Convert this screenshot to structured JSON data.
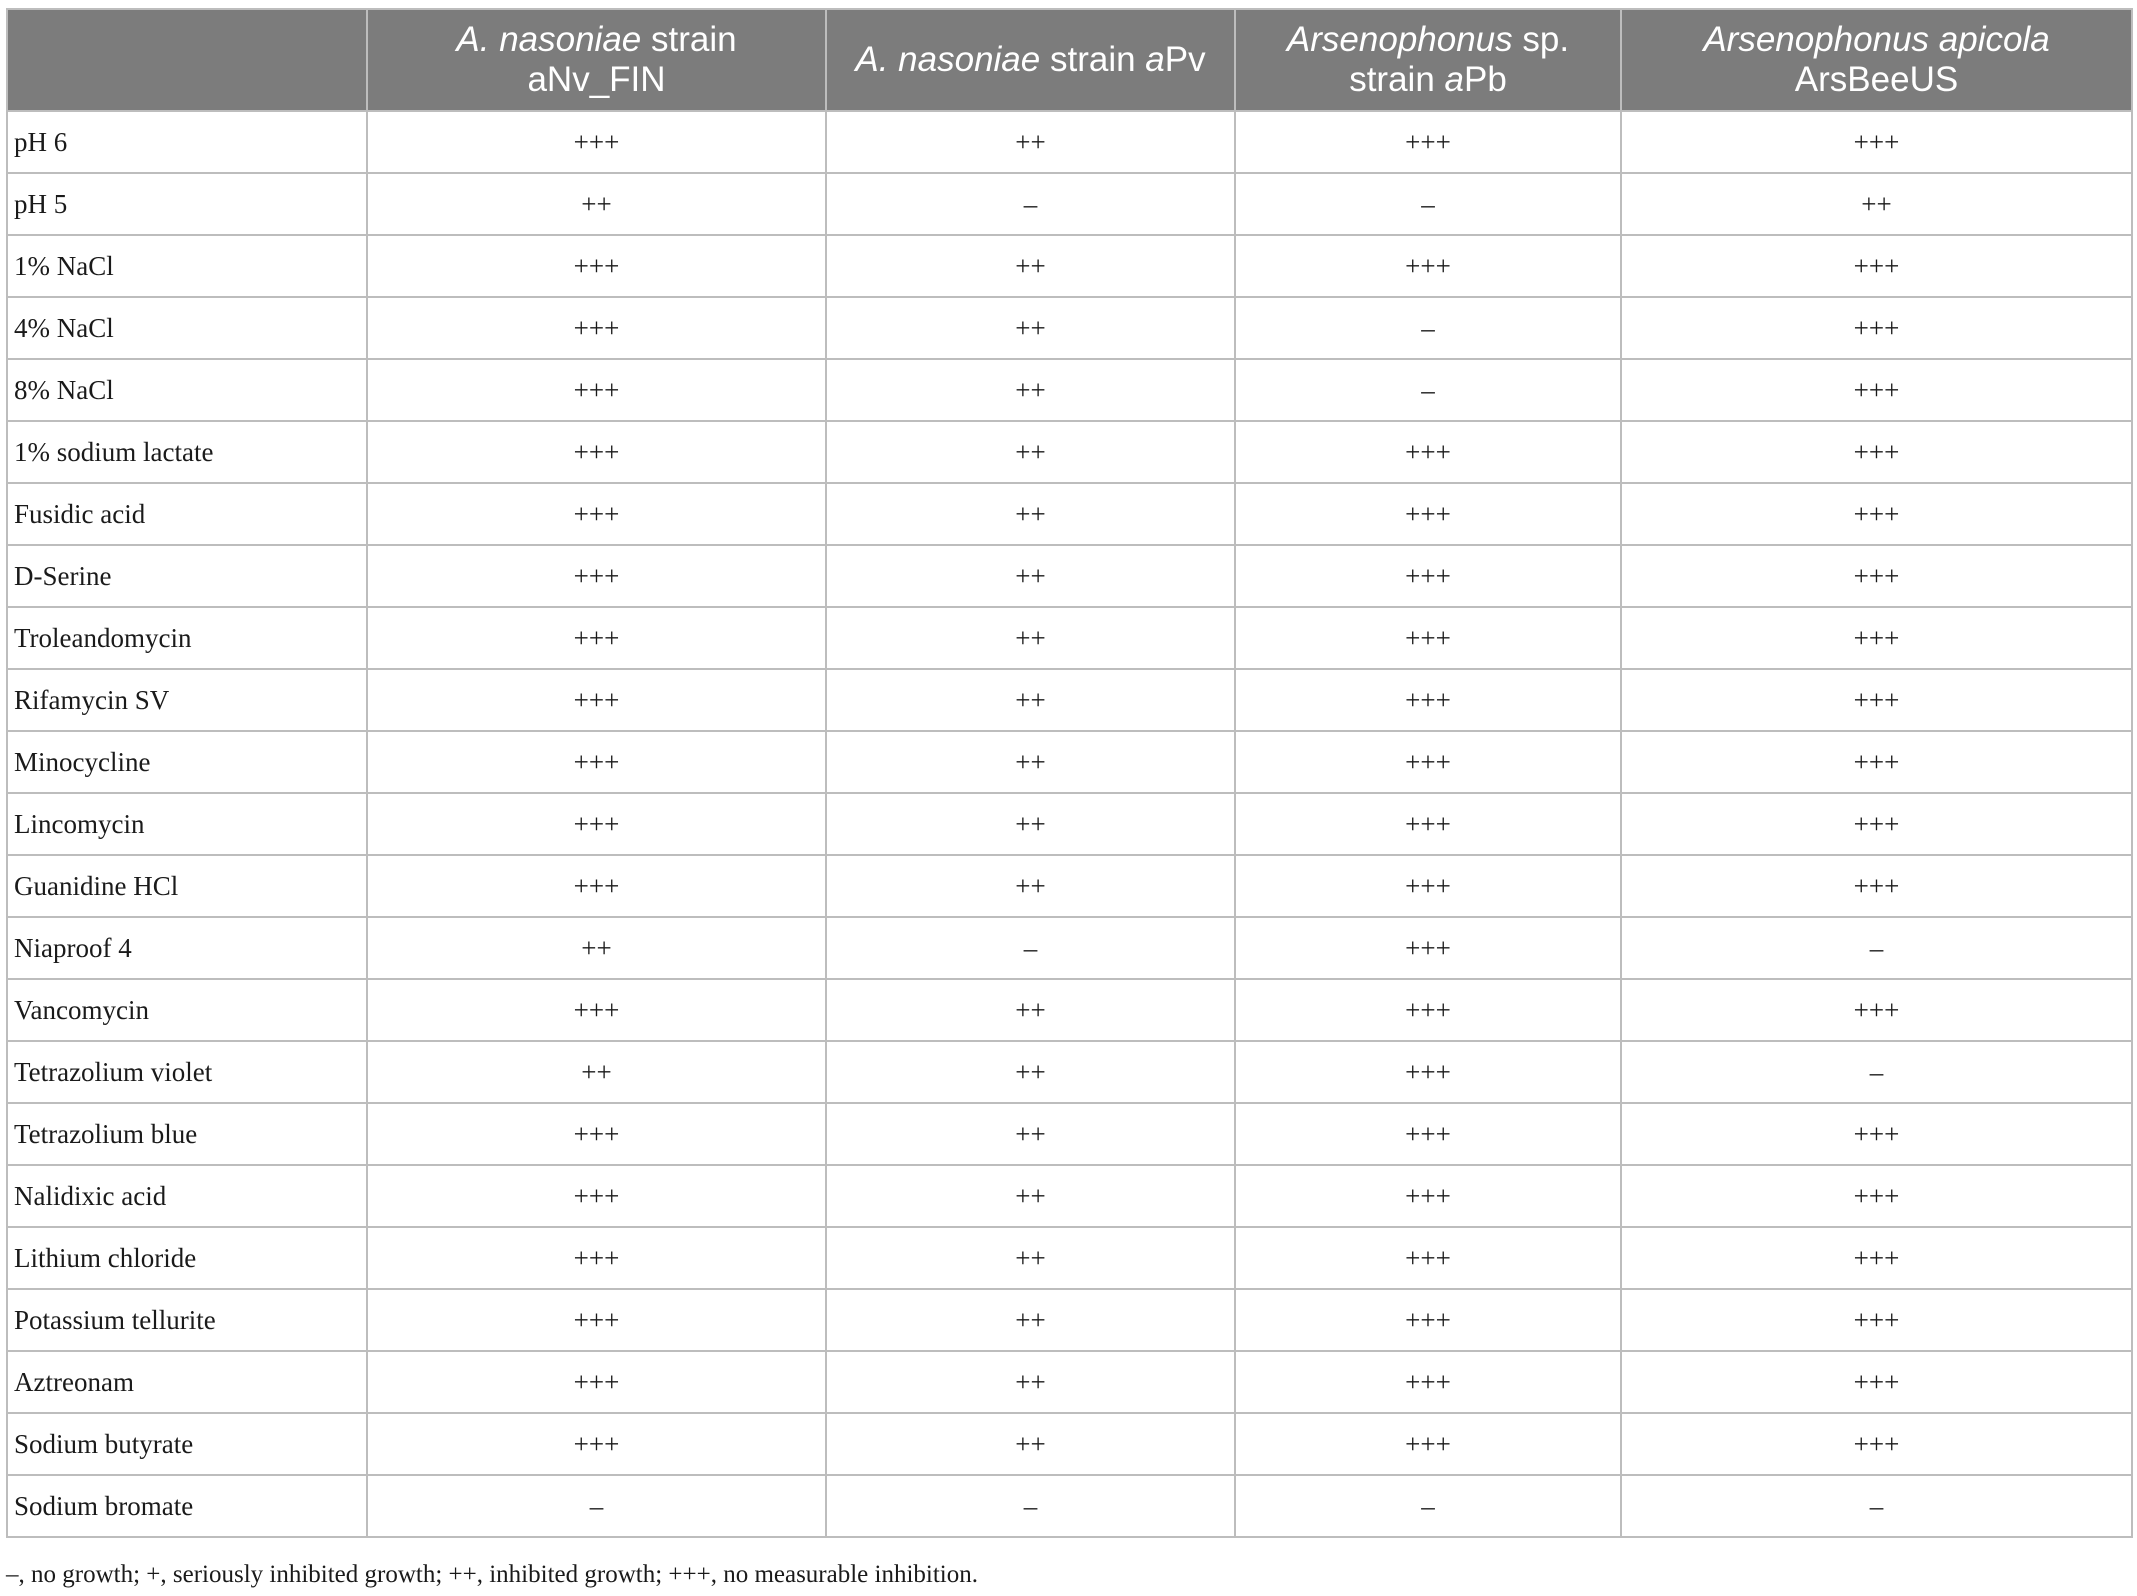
{
  "table": {
    "columns": [
      {
        "label": ""
      },
      {
        "line1_italic": "A. nasoniae",
        "line1_rest": " strain",
        "line2_italic": "",
        "line2_rest": "aNv_FIN"
      },
      {
        "line1_italic": "A. nasoniae",
        "line1_rest": " strain ",
        "line1_italic2": "a",
        "line1_rest2": "Pv"
      },
      {
        "line1_italic": "Arsenophonus",
        "line1_rest": " sp.",
        "line2_pre": "strain ",
        "line2_italic": "a",
        "line2_rest": "Pb"
      },
      {
        "line1_italic": "Arsenophonus apicola",
        "line1_rest": "",
        "line2_italic": "",
        "line2_rest": "ArsBeeUS"
      }
    ],
    "rows": [
      {
        "label": "pH 6",
        "values": [
          "+++",
          "++",
          "+++",
          "+++"
        ]
      },
      {
        "label": "pH 5",
        "values": [
          "++",
          "–",
          "–",
          "++"
        ]
      },
      {
        "label": "1% NaCl",
        "values": [
          "+++",
          "++",
          "+++",
          "+++"
        ]
      },
      {
        "label": "4% NaCl",
        "values": [
          "+++",
          "++",
          "–",
          "+++"
        ]
      },
      {
        "label": "8% NaCl",
        "values": [
          "+++",
          "++",
          "–",
          "+++"
        ]
      },
      {
        "label": "1% sodium lactate",
        "values": [
          "+++",
          "++",
          "+++",
          "+++"
        ]
      },
      {
        "label": "Fusidic acid",
        "values": [
          "+++",
          "++",
          "+++",
          "+++"
        ]
      },
      {
        "label": "D-Serine",
        "values": [
          "+++",
          "++",
          "+++",
          "+++"
        ]
      },
      {
        "label": "Troleandomycin",
        "values": [
          "+++",
          "++",
          "+++",
          "+++"
        ]
      },
      {
        "label": "Rifamycin SV",
        "values": [
          "+++",
          "++",
          "+++",
          "+++"
        ]
      },
      {
        "label": "Minocycline",
        "values": [
          "+++",
          "++",
          "+++",
          "+++"
        ]
      },
      {
        "label": "Lincomycin",
        "values": [
          "+++",
          "++",
          "+++",
          "+++"
        ]
      },
      {
        "label": "Guanidine HCl",
        "values": [
          "+++",
          "++",
          "+++",
          "+++"
        ]
      },
      {
        "label": "Niaproof 4",
        "values": [
          "++",
          "–",
          "+++",
          "–"
        ]
      },
      {
        "label": "Vancomycin",
        "values": [
          "+++",
          "++",
          "+++",
          "+++"
        ]
      },
      {
        "label": "Tetrazolium violet",
        "values": [
          "++",
          "++",
          "+++",
          "–"
        ]
      },
      {
        "label": "Tetrazolium blue",
        "values": [
          "+++",
          "++",
          "+++",
          "+++"
        ]
      },
      {
        "label": "Nalidixic acid",
        "values": [
          "+++",
          "++",
          "+++",
          "+++"
        ]
      },
      {
        "label": "Lithium chloride",
        "values": [
          "+++",
          "++",
          "+++",
          "+++"
        ]
      },
      {
        "label": "Potassium tellurite",
        "values": [
          "+++",
          "++",
          "+++",
          "+++"
        ]
      },
      {
        "label": "Aztreonam",
        "values": [
          "+++",
          "++",
          "+++",
          "+++"
        ]
      },
      {
        "label": "Sodium butyrate",
        "values": [
          "+++",
          "++",
          "+++",
          "+++"
        ]
      },
      {
        "label": "Sodium bromate",
        "values": [
          "–",
          "–",
          "–",
          "–"
        ]
      }
    ]
  },
  "footnote": "–, no growth; +, seriously inhibited growth; ++, inhibited growth; +++, no measurable inhibition.",
  "colors": {
    "header_bg": "#7c7c7c",
    "header_text": "#ffffff",
    "grid": "#bdbdbd"
  }
}
